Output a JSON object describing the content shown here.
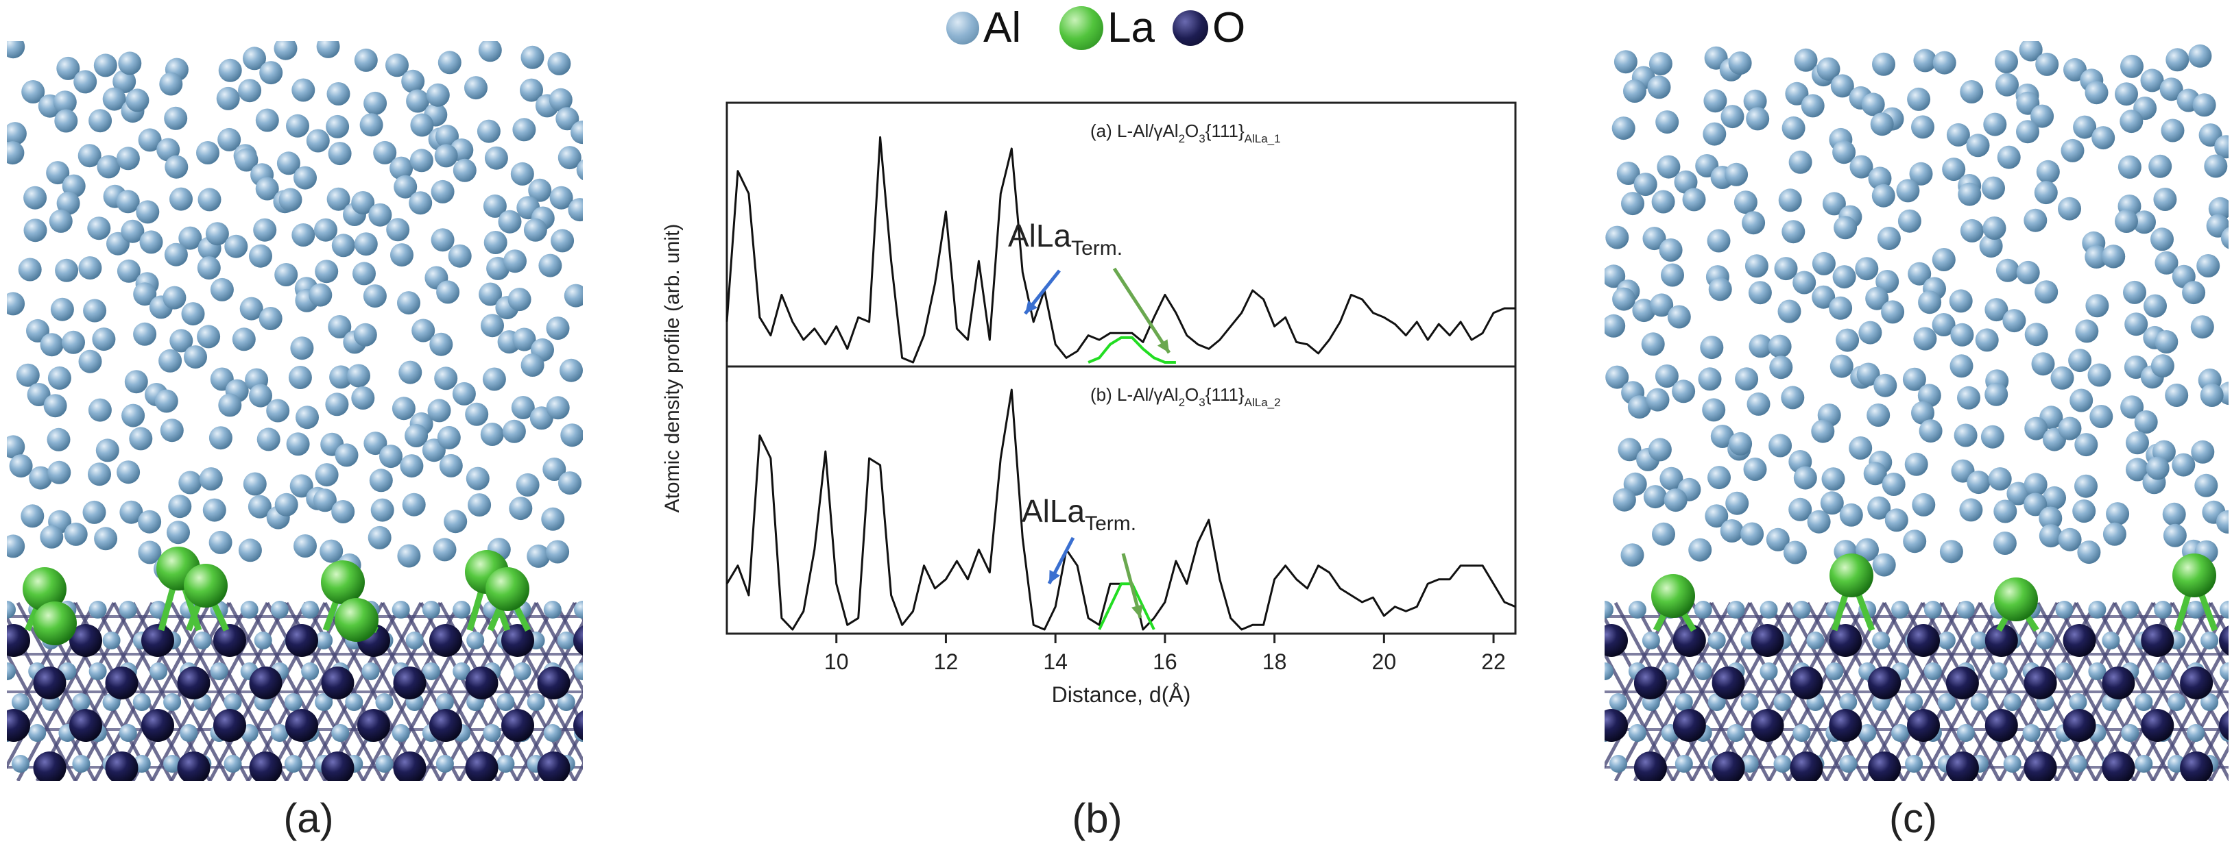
{
  "legend": [
    {
      "label": "Al",
      "color": "#7fa8c8",
      "icon": "al-atom-icon"
    },
    {
      "label": "La",
      "color": "#4cc23a",
      "icon": "la-atom-icon"
    },
    {
      "label": "O",
      "color": "#1c1c48",
      "icon": "o-atom-icon"
    }
  ],
  "captions": {
    "a": "(a)",
    "b": "(b)",
    "c": "(c)"
  },
  "colors": {
    "al": "#7fa8c8",
    "la": "#4cc23a",
    "o": "#1c1c48",
    "bond": "#4a4a78",
    "arrow_blue": "#3a6fd0",
    "arrow_green": "#6aa84f",
    "profile": "#111111",
    "la_profile": "#22dd22"
  },
  "chart_data": {
    "type": "line",
    "ylabel": "Atomic density profile (arb. unit)",
    "xlabel": "Distance, d(Å)",
    "xlim": [
      8,
      22.4
    ],
    "x_ticks": [
      10,
      12,
      14,
      16,
      18,
      20,
      22
    ],
    "panels": [
      {
        "label_prefix": "(a) L-Al/γAl",
        "label_sub1": "2",
        "label_mid": "O",
        "label_sub2": "3",
        "label_hkl": "{111}",
        "label_sub3": "AlLa_1",
        "annotation_main": "AlLa",
        "annotation_sub": "Term.",
        "ylim": [
          0,
          1.05
        ],
        "series": [
          {
            "name": "Al",
            "x": [
              8.0,
              8.2,
              8.4,
              8.6,
              8.8,
              9.0,
              9.2,
              9.4,
              9.6,
              9.8,
              10.0,
              10.2,
              10.4,
              10.6,
              10.8,
              11.0,
              11.2,
              11.4,
              11.6,
              11.8,
              12.0,
              12.2,
              12.4,
              12.6,
              12.8,
              13.0,
              13.2,
              13.4,
              13.6,
              13.8,
              14.0,
              14.2,
              14.4,
              14.6,
              14.8,
              15.0,
              15.2,
              15.4,
              15.6,
              15.8,
              16.0,
              16.2,
              16.4,
              16.6,
              16.8,
              17.0,
              17.2,
              17.4,
              17.6,
              17.8,
              18.0,
              18.2,
              18.4,
              18.6,
              18.8,
              19.0,
              19.2,
              19.4,
              19.6,
              19.8,
              20.0,
              20.2,
              20.4,
              20.6,
              20.8,
              21.0,
              21.2,
              21.4,
              21.6,
              21.8,
              22.0,
              22.2,
              22.4
            ],
            "y": [
              0.18,
              0.85,
              0.75,
              0.2,
              0.12,
              0.3,
              0.18,
              0.1,
              0.15,
              0.08,
              0.16,
              0.06,
              0.2,
              0.18,
              1.0,
              0.45,
              0.02,
              0.0,
              0.12,
              0.35,
              0.67,
              0.15,
              0.1,
              0.45,
              0.1,
              0.75,
              0.95,
              0.4,
              0.18,
              0.32,
              0.08,
              0.02,
              0.05,
              0.12,
              0.1,
              0.13,
              0.13,
              0.13,
              0.09,
              0.2,
              0.3,
              0.22,
              0.12,
              0.08,
              0.06,
              0.1,
              0.16,
              0.22,
              0.32,
              0.28,
              0.16,
              0.2,
              0.09,
              0.08,
              0.04,
              0.1,
              0.18,
              0.3,
              0.28,
              0.22,
              0.2,
              0.17,
              0.12,
              0.18,
              0.1,
              0.17,
              0.12,
              0.18,
              0.1,
              0.13,
              0.22,
              0.24,
              0.24
            ]
          },
          {
            "name": "La",
            "x": [
              14.6,
              14.8,
              15.0,
              15.2,
              15.4,
              15.6,
              15.8,
              16.0,
              16.2
            ],
            "y": [
              0.0,
              0.02,
              0.08,
              0.11,
              0.11,
              0.06,
              0.02,
              0.0,
              0.0
            ]
          }
        ]
      },
      {
        "label_prefix": "(b) L-Al/γAl",
        "label_sub1": "2",
        "label_mid": "O",
        "label_sub2": "3",
        "label_hkl": "{111}",
        "label_sub3": "AlLa_2",
        "annotation_main": "AlLa",
        "annotation_sub": "Term.",
        "ylim": [
          0,
          1.05
        ],
        "series": [
          {
            "name": "Al",
            "x": [
              8.0,
              8.2,
              8.4,
              8.6,
              8.8,
              9.0,
              9.2,
              9.4,
              9.6,
              9.8,
              10.0,
              10.2,
              10.4,
              10.6,
              10.8,
              11.0,
              11.2,
              11.4,
              11.6,
              11.8,
              12.0,
              12.2,
              12.4,
              12.6,
              12.8,
              13.0,
              13.2,
              13.4,
              13.6,
              13.8,
              14.0,
              14.2,
              14.4,
              14.6,
              14.8,
              15.0,
              15.2,
              15.4,
              15.6,
              15.8,
              16.0,
              16.2,
              16.4,
              16.6,
              16.8,
              17.0,
              17.2,
              17.4,
              17.6,
              17.8,
              18.0,
              18.2,
              18.4,
              18.6,
              18.8,
              19.0,
              19.2,
              19.4,
              19.6,
              19.8,
              20.0,
              20.2,
              20.4,
              20.6,
              20.8,
              21.0,
              21.2,
              21.4,
              21.6,
              21.8,
              22.0,
              22.2,
              22.4
            ],
            "y": [
              0.2,
              0.28,
              0.15,
              0.85,
              0.75,
              0.05,
              0.0,
              0.08,
              0.35,
              0.78,
              0.2,
              0.02,
              0.05,
              0.75,
              0.72,
              0.15,
              0.02,
              0.08,
              0.28,
              0.18,
              0.22,
              0.3,
              0.22,
              0.35,
              0.25,
              0.75,
              1.05,
              0.4,
              0.02,
              0.0,
              0.1,
              0.35,
              0.28,
              0.05,
              0.02,
              0.2,
              0.2,
              0.2,
              0.0,
              0.05,
              0.12,
              0.3,
              0.2,
              0.38,
              0.48,
              0.22,
              0.05,
              0.0,
              0.02,
              0.02,
              0.22,
              0.28,
              0.22,
              0.18,
              0.28,
              0.25,
              0.18,
              0.15,
              0.12,
              0.14,
              0.06,
              0.1,
              0.08,
              0.1,
              0.2,
              0.22,
              0.22,
              0.28,
              0.28,
              0.28,
              0.2,
              0.12,
              0.1
            ]
          },
          {
            "name": "La",
            "x": [
              14.8,
              15.0,
              15.2,
              15.4,
              15.6,
              15.8
            ],
            "y": [
              0.0,
              0.1,
              0.2,
              0.2,
              0.1,
              0.0
            ]
          }
        ]
      }
    ]
  }
}
